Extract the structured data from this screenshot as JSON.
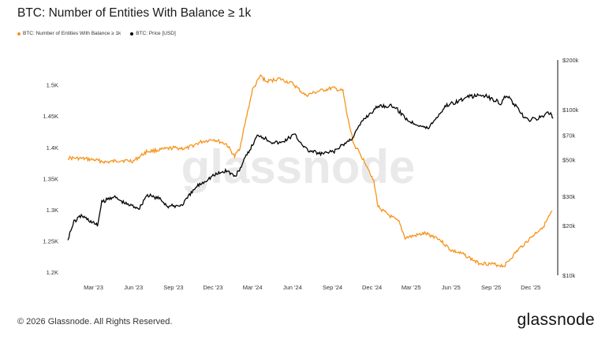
{
  "page": {
    "title": "BTC: Number of Entities With Balance ≥ 1k",
    "footer_copyright": "© 2026 Glassnode. All Rights Reserved.",
    "footer_logo": "glassnode",
    "watermark": "glassnode"
  },
  "chart_data": {
    "type": "line",
    "series": [
      {
        "name": "BTC: Number of Entities With Balance ≥ 1k",
        "color": "#f7931a",
        "axis": "left",
        "points": [
          [
            "2023-01-01",
            1383
          ],
          [
            "2023-02-01",
            1382
          ],
          [
            "2023-03-01",
            1380
          ],
          [
            "2023-04-01",
            1376
          ],
          [
            "2023-05-01",
            1379
          ],
          [
            "2023-06-01",
            1378
          ],
          [
            "2023-07-01",
            1393
          ],
          [
            "2023-08-01",
            1396
          ],
          [
            "2023-09-01",
            1399
          ],
          [
            "2023-10-01",
            1398
          ],
          [
            "2023-11-01",
            1408
          ],
          [
            "2023-12-01",
            1413
          ],
          [
            "2024-01-01",
            1405
          ],
          [
            "2024-01-20",
            1385
          ],
          [
            "2024-02-01",
            1400
          ],
          [
            "2024-02-15",
            1445
          ],
          [
            "2024-03-01",
            1492
          ],
          [
            "2024-03-20",
            1515
          ],
          [
            "2024-04-01",
            1505
          ],
          [
            "2024-05-01",
            1510
          ],
          [
            "2024-06-01",
            1502
          ],
          [
            "2024-07-01",
            1483
          ],
          [
            "2024-08-01",
            1490
          ],
          [
            "2024-09-01",
            1495
          ],
          [
            "2024-09-25",
            1490
          ],
          [
            "2024-10-05",
            1450
          ],
          [
            "2024-10-20",
            1405
          ],
          [
            "2024-11-01",
            1392
          ],
          [
            "2024-11-20",
            1370
          ],
          [
            "2024-12-05",
            1345
          ],
          [
            "2024-12-15",
            1305
          ],
          [
            "2025-01-01",
            1295
          ],
          [
            "2025-02-01",
            1280
          ],
          [
            "2025-02-15",
            1255
          ],
          [
            "2025-03-01",
            1257
          ],
          [
            "2025-04-01",
            1262
          ],
          [
            "2025-05-01",
            1255
          ],
          [
            "2025-06-01",
            1235
          ],
          [
            "2025-07-01",
            1228
          ],
          [
            "2025-08-01",
            1215
          ],
          [
            "2025-09-01",
            1213
          ],
          [
            "2025-10-01",
            1210
          ],
          [
            "2025-11-01",
            1235
          ],
          [
            "2025-12-01",
            1255
          ],
          [
            "2026-01-01",
            1275
          ],
          [
            "2026-01-20",
            1298
          ]
        ]
      },
      {
        "name": "BTC: Price [USD]",
        "color": "#000000",
        "axis": "right",
        "points": [
          [
            "2023-01-01",
            16600
          ],
          [
            "2023-01-15",
            21000
          ],
          [
            "2023-02-01",
            23000
          ],
          [
            "2023-03-10",
            20000
          ],
          [
            "2023-03-20",
            27500
          ],
          [
            "2023-04-15",
            30000
          ],
          [
            "2023-05-15",
            27000
          ],
          [
            "2023-06-15",
            25500
          ],
          [
            "2023-07-01",
            30500
          ],
          [
            "2023-08-01",
            29000
          ],
          [
            "2023-08-20",
            26000
          ],
          [
            "2023-09-20",
            26500
          ],
          [
            "2023-10-25",
            34500
          ],
          [
            "2023-12-01",
            40000
          ],
          [
            "2024-01-01",
            43000
          ],
          [
            "2024-01-22",
            39500
          ],
          [
            "2024-02-15",
            52000
          ],
          [
            "2024-03-14",
            71000
          ],
          [
            "2024-04-15",
            64000
          ],
          [
            "2024-05-05",
            63000
          ],
          [
            "2024-06-05",
            71000
          ],
          [
            "2024-07-05",
            57000
          ],
          [
            "2024-08-05",
            54000
          ],
          [
            "2024-09-05",
            56000
          ],
          [
            "2024-10-15",
            67000
          ],
          [
            "2024-11-12",
            88000
          ],
          [
            "2024-12-17",
            106000
          ],
          [
            "2025-01-20",
            105000
          ],
          [
            "2025-02-25",
            85000
          ],
          [
            "2025-03-15",
            82000
          ],
          [
            "2025-04-08",
            77000
          ],
          [
            "2025-05-20",
            106000
          ],
          [
            "2025-07-14",
            120000
          ],
          [
            "2025-08-14",
            123000
          ],
          [
            "2025-09-25",
            109000
          ],
          [
            "2025-10-06",
            124000
          ],
          [
            "2025-11-20",
            87000
          ],
          [
            "2025-12-15",
            88000
          ],
          [
            "2026-01-14",
            96000
          ],
          [
            "2026-01-22",
            89000
          ]
        ]
      }
    ],
    "x_ticks": [
      "Mar '23",
      "Jun '23",
      "Sep '23",
      "Dec '23",
      "Mar '24",
      "Jun '24",
      "Sep '24",
      "Dec '24",
      "Mar '25",
      "Jun '25",
      "Sep '25",
      "Dec '25"
    ],
    "x_tick_dates": [
      "2023-03-01",
      "2023-06-01",
      "2023-09-01",
      "2023-12-01",
      "2024-03-01",
      "2024-06-01",
      "2024-09-01",
      "2024-12-01",
      "2025-03-01",
      "2025-06-01",
      "2025-09-01",
      "2025-12-01"
    ],
    "x_range": [
      "2023-01-01",
      "2026-01-25"
    ],
    "y_left": {
      "ticks": [
        1200,
        1250,
        1300,
        1350,
        1400,
        1450,
        1500
      ],
      "labels": [
        "1.2K",
        "1.25K",
        "1.3K",
        "1.35K",
        "1.4K",
        "1.45K",
        "1.5K"
      ],
      "range": [
        1195,
        1540
      ]
    },
    "y_right": {
      "scale": "log",
      "ticks": [
        10000,
        20000,
        30000,
        50000,
        70000,
        100000,
        200000
      ],
      "labels": [
        "$10k",
        "$20k",
        "$30k",
        "$50k",
        "$70k",
        "$100k",
        "$200k"
      ],
      "range": [
        10000,
        200000
      ]
    },
    "legend": [
      "BTC: Number of Entities With Balance ≥ 1k",
      "BTC: Price [USD]"
    ],
    "legend_position": "top-left",
    "grid": false
  }
}
